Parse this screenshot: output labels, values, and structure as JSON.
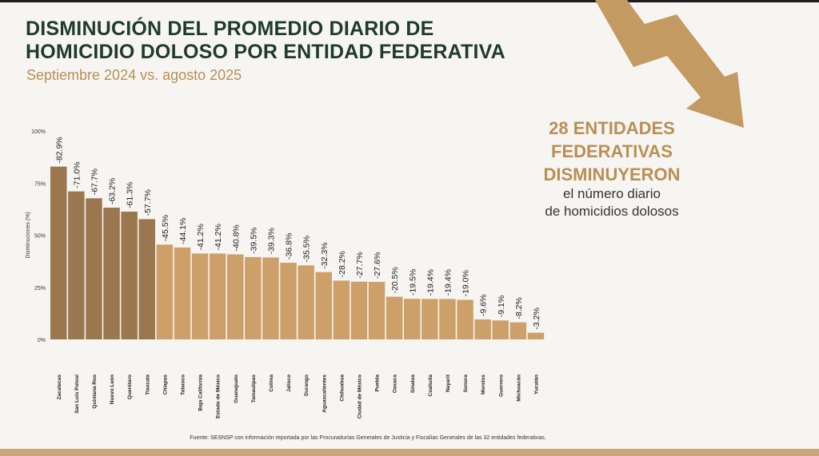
{
  "header": {
    "title_line1": "DISMINUCIÓN DEL PROMEDIO DIARIO DE",
    "title_line2": "HOMICIDIO DOLOSO POR ENTIDAD FEDERATIVA",
    "subtitle": "Septiembre 2024 vs. agosto 2025"
  },
  "callout": {
    "line1": "28 ENTIDADES",
    "line2": "FEDERATIVAS",
    "line3": "DISMINUYERON",
    "body1": "el número diario",
    "body2": "de homicidios dolosos"
  },
  "source": "Fuente: SESNSP con información reportada por las Procuradurías Generales de Justicia y Fiscalías Generales de las 32 entidades federativas.",
  "colors": {
    "title": "#1f3a30",
    "accent": "#b98f55",
    "bar_dark": "#9b7750",
    "bar_light": "#cda06a",
    "arrow": "#c49a63"
  },
  "chart_data": {
    "type": "bar",
    "ylabel": "Disminuciones (%)",
    "ylim": [
      0,
      100
    ],
    "yticks": [
      "0%",
      "25%",
      "50%",
      "75%",
      "100%"
    ],
    "categories": [
      "Zacatecas",
      "San Luis Potosí",
      "Quintana Roo",
      "Nuevo León",
      "Querétaro",
      "Tlaxcala",
      "Chiapas",
      "Tabasco",
      "Baja California",
      "Estado de México",
      "Guanajuato",
      "Tamaulipas",
      "Colima",
      "Jalisco",
      "Durango",
      "Aguascalientes",
      "Chihuahua",
      "Ciudad de México",
      "Puebla",
      "Oaxaca",
      "Sinaloa",
      "Coahuila",
      "Nayarit",
      "Sonora",
      "Morelos",
      "Guerrero",
      "Michoacán",
      "Yucatán"
    ],
    "values": [
      82.9,
      71.0,
      67.7,
      63.2,
      61.3,
      57.7,
      45.5,
      44.1,
      41.2,
      41.2,
      40.8,
      39.5,
      39.3,
      36.8,
      35.5,
      32.3,
      28.2,
      27.7,
      27.6,
      20.5,
      19.5,
      19.4,
      19.4,
      19.0,
      9.6,
      9.1,
      8.2,
      3.2
    ],
    "labels": [
      "-82.9%",
      "-71.0%",
      "-67.7%",
      "-63.2%",
      "-61.3%",
      "-57.7%",
      "-45.5%",
      "-44.1%",
      "-41.2%",
      "-41.2%",
      "-40.8%",
      "-39.5%",
      "-39.3%",
      "-36.8%",
      "-35.5%",
      "-32.3%",
      "-28.2%",
      "-27.7%",
      "-27.6%",
      "-20.5%",
      "-19.5%",
      "-19.4%",
      "-19.4%",
      "-19.0%",
      "-9.6%",
      "-9.1%",
      "-8.2%",
      "-3.2%"
    ],
    "highlight_top_n": 6,
    "grid": false,
    "legend": "none"
  }
}
